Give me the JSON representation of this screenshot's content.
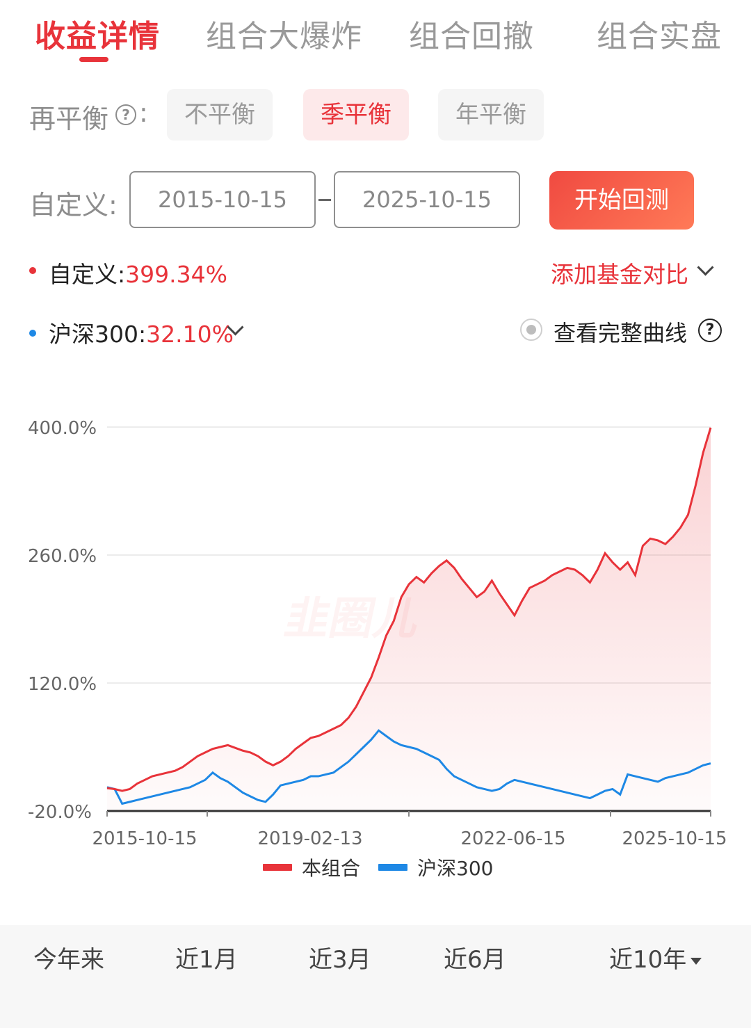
{
  "tabs": [
    {
      "label": "收益详情",
      "active": true
    },
    {
      "label": "组合大爆炸",
      "active": false
    },
    {
      "label": "组合回撤",
      "active": false
    },
    {
      "label": "组合实盘",
      "active": false
    }
  ],
  "rebalance": {
    "label": "再平衡",
    "colon": ":",
    "help_glyph": "?",
    "options": [
      {
        "label": "不平衡",
        "active": false
      },
      {
        "label": "季平衡",
        "active": true
      },
      {
        "label": "年平衡",
        "active": false
      }
    ]
  },
  "custom": {
    "label": "自定义:",
    "start_date": "2015-10-15",
    "end_date": "2025-10-15",
    "button_label": "开始回测"
  },
  "legend": {
    "portfolio_name": "自定义:",
    "portfolio_value": "399.34%",
    "portfolio_color": "#e8333a",
    "benchmark_name": "沪深300:",
    "benchmark_value": "32.10%",
    "benchmark_color": "#1e88e5",
    "add_compare": "添加基金对比",
    "view_full_curve": "查看完整曲线",
    "help_glyph": "?"
  },
  "chart_data": {
    "type": "line",
    "x_ticks": [
      "2015-10-15",
      "2019-02-13",
      "2022-06-15",
      "2025-10-15"
    ],
    "y_ticks": [
      "400.0%",
      "260.0%",
      "120.0%",
      "-20.0%"
    ],
    "ylim": [
      -20,
      400
    ],
    "series": [
      {
        "name": "本组合",
        "color": "#e8333a",
        "values": [
          5,
          4,
          2,
          4,
          10,
          14,
          18,
          20,
          22,
          24,
          28,
          34,
          40,
          44,
          48,
          50,
          52,
          49,
          46,
          44,
          40,
          34,
          30,
          34,
          40,
          48,
          54,
          60,
          62,
          66,
          70,
          74,
          82,
          94,
          110,
          126,
          148,
          172,
          188,
          214,
          228,
          236,
          230,
          240,
          248,
          254,
          246,
          234,
          224,
          214,
          220,
          232,
          218,
          206,
          194,
          210,
          224,
          228,
          232,
          238,
          242,
          246,
          244,
          238,
          230,
          244,
          262,
          252,
          244,
          252,
          238,
          270,
          278,
          276,
          272,
          280,
          290,
          304,
          336,
          372,
          399.34
        ]
      },
      {
        "name": "沪深300",
        "color": "#1e88e5",
        "values": [
          6,
          4,
          -12,
          -10,
          -8,
          -6,
          -4,
          -2,
          0,
          2,
          4,
          6,
          10,
          14,
          22,
          16,
          12,
          6,
          0,
          -4,
          -8,
          -10,
          -2,
          8,
          10,
          12,
          14,
          18,
          18,
          20,
          22,
          28,
          34,
          42,
          50,
          58,
          68,
          62,
          56,
          52,
          50,
          48,
          44,
          40,
          36,
          26,
          18,
          14,
          10,
          6,
          4,
          2,
          4,
          10,
          14,
          12,
          10,
          8,
          6,
          4,
          2,
          0,
          -2,
          -4,
          -6,
          -2,
          2,
          4,
          -2,
          20,
          18,
          16,
          14,
          12,
          16,
          18,
          20,
          22,
          26,
          30,
          32.1
        ]
      }
    ],
    "legend_position": "bottom-center",
    "grid": true
  },
  "periods": [
    {
      "label": "今年来",
      "dropdown": false
    },
    {
      "label": "近1月",
      "dropdown": false
    },
    {
      "label": "近3月",
      "dropdown": false
    },
    {
      "label": "近6月",
      "dropdown": false
    },
    {
      "label": "近10年",
      "dropdown": true
    }
  ]
}
